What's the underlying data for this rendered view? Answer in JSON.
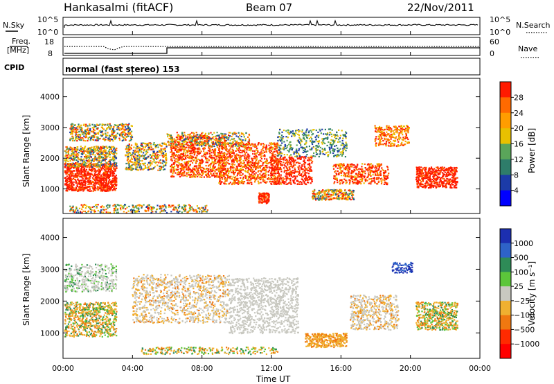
{
  "header": {
    "station": "Hankasalmi (fitACF)",
    "beam": "Beam 07",
    "date": "22/Nov/2011"
  },
  "noise_panel": {
    "left_label": "N.Sky",
    "right_label": "N.Search",
    "left_ticks": [
      "10^5",
      "10^0"
    ],
    "right_ticks": [
      "10^5",
      "10^0"
    ]
  },
  "freq_panel": {
    "left_label_line1": "Freq.",
    "left_label_line2": "[MHz]",
    "right_label": "Nave",
    "left_ticks": [
      "18",
      "8"
    ],
    "right_ticks": [
      "60",
      "0"
    ]
  },
  "cpid": {
    "label": "CPID",
    "value": "normal (fast stereo) 153"
  },
  "chart_data": [
    {
      "type": "heatmap",
      "ylabel": "Slant Range [km]",
      "y_ticks": [
        "1000",
        "2000",
        "3000",
        "4000"
      ],
      "ylim": [
        200,
        4600
      ],
      "colorbar_label": "Power [dB]",
      "colorbar_ticks": [
        "28",
        "24",
        "20",
        "16",
        "12",
        "8",
        "4"
      ],
      "colorbar_colors": [
        "#ff1a00",
        "#ff6a00",
        "#ff9d00",
        "#e8c000",
        "#5aa55a",
        "#2e7d6a",
        "#1c3ba8",
        "#0000ff"
      ]
    },
    {
      "type": "heatmap",
      "ylabel": "Slant Range [km]",
      "y_ticks": [
        "1000",
        "2000",
        "3000",
        "4000"
      ],
      "ylim": [
        200,
        4600
      ],
      "colorbar_label": "Velocity [m s⁻¹]",
      "colorbar_ticks": [
        "1000",
        "500",
        "100",
        "25",
        "−25",
        "−100",
        "−500",
        "−1000"
      ],
      "colorbar_colors": [
        "#1c2fb0",
        "#2e63c8",
        "#2e8b57",
        "#5cc63a",
        "#c8c8c0",
        "#f0b030",
        "#f07810",
        "#ff2a00",
        "#ff0000"
      ]
    }
  ],
  "x_ticks": [
    "00:00",
    "04:00",
    "08:00",
    "12:00",
    "16:00",
    "20:00",
    "00:00"
  ],
  "xlabel": "Time UT"
}
